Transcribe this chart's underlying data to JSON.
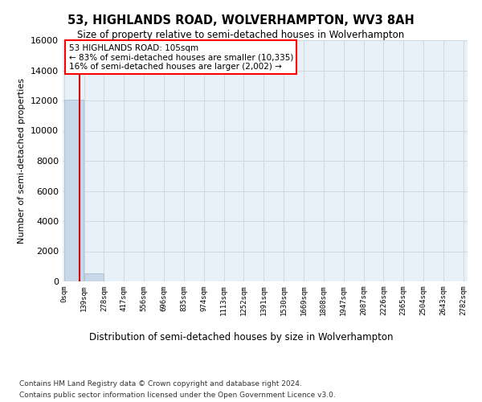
{
  "title": "53, HIGHLANDS ROAD, WOLVERHAMPTON, WV3 8AH",
  "subtitle": "Size of property relative to semi-detached houses in Wolverhampton",
  "xlabel": "Distribution of semi-detached houses by size in Wolverhampton",
  "ylabel": "Number of semi-detached properties",
  "property_size": 105,
  "annotation_title": "53 HIGHLANDS ROAD: 105sqm",
  "annotation_line1": "← 83% of semi-detached houses are smaller (10,335)",
  "annotation_line2": "16% of semi-detached houses are larger (2,002) →",
  "footer_line1": "Contains HM Land Registry data © Crown copyright and database right 2024.",
  "footer_line2": "Contains public sector information licensed under the Open Government Licence v3.0.",
  "bin_edges": [
    0,
    139,
    278,
    417,
    556,
    696,
    835,
    974,
    1113,
    1252,
    1391,
    1530,
    1669,
    1808,
    1947,
    2087,
    2226,
    2365,
    2504,
    2643,
    2782
  ],
  "bar_heights": [
    12050,
    540,
    20,
    5,
    2,
    1,
    1,
    0,
    0,
    0,
    0,
    0,
    0,
    0,
    0,
    0,
    0,
    0,
    0,
    0
  ],
  "bar_color": "#c8d8e8",
  "bar_edgecolor": "#a0b8cc",
  "property_line_color": "#cc0000",
  "ylim": [
    0,
    16000
  ],
  "yticks": [
    0,
    2000,
    4000,
    6000,
    8000,
    10000,
    12000,
    14000,
    16000
  ],
  "grid_color": "#d0d8e0",
  "background_color": "#e8f0f8"
}
